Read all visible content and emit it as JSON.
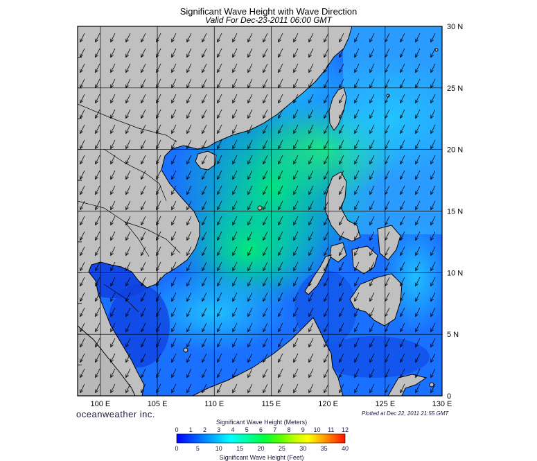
{
  "title": "Significant Wave Height with Wave Direction",
  "subtitle": "Valid For Dec-23-2011 06:00 GMT",
  "branding": "oceanweather inc.",
  "plotted_note": "Plotted at Dec 22, 2011 21:55 GMT",
  "map": {
    "lon_min": 98,
    "lon_max": 130,
    "lat_min": 0,
    "lat_max": 30,
    "lon_ticks": [
      {
        "value": 100,
        "label": "100 E"
      },
      {
        "value": 105,
        "label": "105 E"
      },
      {
        "value": 110,
        "label": "110 E"
      },
      {
        "value": 115,
        "label": "115 E"
      },
      {
        "value": 120,
        "label": "120 E"
      },
      {
        "value": 125,
        "label": "125 E"
      },
      {
        "value": 130,
        "label": "130 E"
      }
    ],
    "lat_ticks": [
      {
        "value": 30,
        "label": "30 N"
      },
      {
        "value": 25,
        "label": "25 N"
      },
      {
        "value": 20,
        "label": "20 N"
      },
      {
        "value": 15,
        "label": "15 N"
      },
      {
        "value": 10,
        "label": "10 N"
      },
      {
        "value": 5,
        "label": "5 N"
      },
      {
        "value": 0,
        "label": "0"
      }
    ],
    "land_color": "#c0c0c0",
    "arrow_direction": "toward southwest"
  },
  "colorbar": {
    "title_meters": "Significant Wave Height (Meters)",
    "title_feet": "Significant Wave Height (Feet)",
    "meters_ticks": [
      "0",
      "1",
      "2",
      "3",
      "4",
      "5",
      "6",
      "7",
      "8",
      "9",
      "10",
      "11",
      "12"
    ],
    "feet_ticks": [
      "0",
      "5",
      "10",
      "15",
      "20",
      "25",
      "30",
      "35",
      "40"
    ],
    "colors": [
      "#0000ff",
      "#0040ff",
      "#0080ff",
      "#00c0ff",
      "#00ffff",
      "#00ffb0",
      "#00ff60",
      "#00ff00",
      "#80ff00",
      "#d0ff00",
      "#ffff00",
      "#ffc000",
      "#ff8000",
      "#ff3000",
      "#ff0000"
    ]
  }
}
